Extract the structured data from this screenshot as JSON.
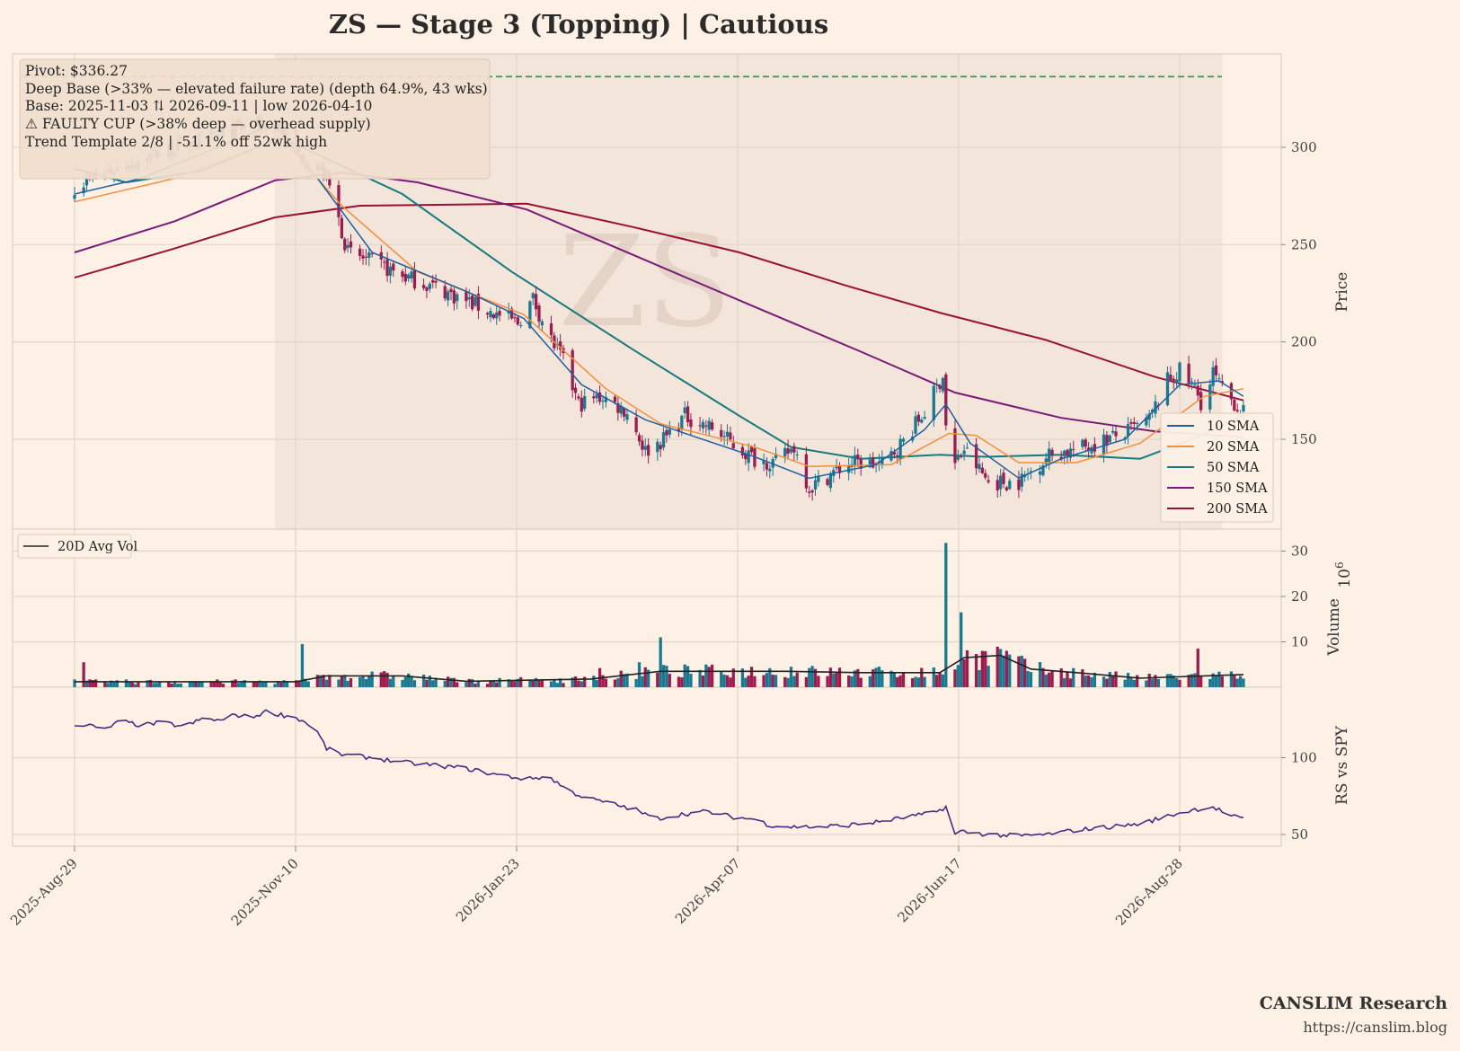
{
  "title": "ZS  —  Stage 3 (Topping)  |  Cautious",
  "watermark": "ZS",
  "annotations": [
    "Pivot: $336.27",
    "Deep Base (>33% — elevated failure rate)  (depth 64.9%, 43 wks)",
    "Base: 2025-11-03 ⇅ 2026-09-11  |  low 2026-04-10",
    "⚠ FAULTY CUP (>38% deep — overhead supply)",
    "Trend Template 2/8  |  -51.1% off 52wk high"
  ],
  "footer": {
    "brand": "CANSLIM Research",
    "url": "https://canslim.blog"
  },
  "colors": {
    "background": "#fdf1e6",
    "base_shade": "#f3e5da",
    "up_candle": "#1a7890",
    "down_candle": "#9b1d50",
    "sma10": "#1f5fa0",
    "sma20": "#f28e3c",
    "sma50": "#167a7e",
    "sma150": "#7a1a78",
    "sma200": "#9a1038",
    "pivot": "#1a9a50",
    "rs_line": "#4a2a80",
    "avg_vol": "#222222"
  },
  "chart_data": [
    {
      "type": "candlestick",
      "panel": "price",
      "ylabel": "Price",
      "yticks": [
        150,
        200,
        250,
        300
      ],
      "ylim": [
        105,
        348
      ],
      "x_dates": [
        "2025-Aug-29",
        "2025-Nov-10",
        "2026-Jan-23",
        "2026-Apr-07",
        "2026-Jun-17",
        "2026-Aug-28"
      ],
      "pivot": 336.27,
      "base_start": "2025-11-03",
      "base_end": "2026-09-11",
      "legend": [
        "10 SMA",
        "20 SMA",
        "50 SMA",
        "150 SMA",
        "200 SMA"
      ],
      "legend_position": "lower right",
      "anchors": [
        [
          "2025-08-29",
          280
        ],
        [
          "2025-09-10",
          288
        ],
        [
          "2025-09-25",
          297
        ],
        [
          "2025-10-10",
          304
        ],
        [
          "2025-10-24",
          310
        ],
        [
          "2025-11-03",
          312
        ],
        [
          "2025-11-12",
          295
        ],
        [
          "2025-11-20",
          285
        ],
        [
          "2025-11-27",
          246
        ],
        [
          "2025-12-05",
          241
        ],
        [
          "2025-12-15",
          234
        ],
        [
          "2025-12-26",
          228
        ],
        [
          "2026-01-05",
          221
        ],
        [
          "2026-01-15",
          214
        ],
        [
          "2026-01-22",
          210
        ],
        [
          "2026-01-27",
          222
        ],
        [
          "2026-02-01",
          204
        ],
        [
          "2026-02-06",
          190
        ],
        [
          "2026-02-11",
          168
        ],
        [
          "2026-02-19",
          172
        ],
        [
          "2026-02-27",
          164
        ],
        [
          "2026-03-05",
          144
        ],
        [
          "2026-03-11",
          150
        ],
        [
          "2026-03-18",
          162
        ],
        [
          "2026-03-28",
          155
        ],
        [
          "2026-04-04",
          146
        ],
        [
          "2026-04-10",
          140
        ],
        [
          "2026-04-17",
          138
        ],
        [
          "2026-04-23",
          146
        ],
        [
          "2026-04-28",
          125
        ],
        [
          "2026-05-05",
          132
        ],
        [
          "2026-05-12",
          138
        ],
        [
          "2026-05-22",
          137
        ],
        [
          "2026-05-29",
          149
        ],
        [
          "2026-06-05",
          164
        ],
        [
          "2026-06-11",
          183
        ],
        [
          "2026-06-13",
          131
        ],
        [
          "2026-06-18",
          145
        ],
        [
          "2026-06-26",
          128
        ],
        [
          "2026-07-06",
          128
        ],
        [
          "2026-07-16",
          142
        ],
        [
          "2026-07-26",
          145
        ],
        [
          "2026-08-04",
          150
        ],
        [
          "2026-08-10",
          153
        ],
        [
          "2026-08-18",
          160
        ],
        [
          "2026-08-24",
          180
        ],
        [
          "2026-08-28",
          185
        ],
        [
          "2026-09-02",
          176
        ],
        [
          "2026-09-05",
          166
        ],
        [
          "2026-09-08",
          184
        ],
        [
          "2026-09-11",
          175
        ],
        [
          "2026-09-18",
          164
        ]
      ],
      "sma10": [
        [
          "2025-08-29",
          276
        ],
        [
          "2025-09-20",
          284
        ],
        [
          "2025-10-15",
          300
        ],
        [
          "2025-11-03",
          312
        ],
        [
          "2025-11-18",
          282
        ],
        [
          "2025-12-05",
          246
        ],
        [
          "2026-01-05",
          226
        ],
        [
          "2026-01-24",
          212
        ],
        [
          "2026-02-12",
          178
        ],
        [
          "2026-03-05",
          160
        ],
        [
          "2026-03-20",
          152
        ],
        [
          "2026-04-10",
          141
        ],
        [
          "2026-04-28",
          130
        ],
        [
          "2026-05-20",
          137
        ],
        [
          "2026-06-05",
          155
        ],
        [
          "2026-06-12",
          168
        ],
        [
          "2026-06-20",
          148
        ],
        [
          "2026-07-06",
          130
        ],
        [
          "2026-07-20",
          140
        ],
        [
          "2026-08-10",
          150
        ],
        [
          "2026-08-28",
          178
        ],
        [
          "2026-09-10",
          180
        ],
        [
          "2026-09-18",
          172
        ]
      ],
      "sma20": [
        [
          "2025-08-29",
          272
        ],
        [
          "2025-10-01",
          284
        ],
        [
          "2025-11-05",
          305
        ],
        [
          "2025-11-25",
          270
        ],
        [
          "2025-12-20",
          236
        ],
        [
          "2026-01-24",
          214
        ],
        [
          "2026-02-20",
          176
        ],
        [
          "2026-03-10",
          158
        ],
        [
          "2026-04-10",
          146
        ],
        [
          "2026-04-28",
          136
        ],
        [
          "2026-05-25",
          137
        ],
        [
          "2026-06-13",
          153
        ],
        [
          "2026-06-22",
          152
        ],
        [
          "2026-07-06",
          138
        ],
        [
          "2026-07-25",
          138
        ],
        [
          "2026-08-15",
          148
        ],
        [
          "2026-09-05",
          172
        ],
        [
          "2026-09-18",
          176
        ]
      ],
      "sma50": [
        [
          "2025-08-29",
          289
        ],
        [
          "2025-09-15",
          282
        ],
        [
          "2025-10-10",
          288
        ],
        [
          "2025-11-05",
          305
        ],
        [
          "2025-12-15",
          276
        ],
        [
          "2026-01-20",
          236
        ],
        [
          "2026-03-01",
          196
        ],
        [
          "2026-04-05",
          162
        ],
        [
          "2026-04-22",
          146
        ],
        [
          "2026-05-15",
          140
        ],
        [
          "2026-06-10",
          142
        ],
        [
          "2026-06-25",
          141
        ],
        [
          "2026-07-20",
          142
        ],
        [
          "2026-08-15",
          140
        ],
        [
          "2026-09-01",
          150
        ],
        [
          "2026-09-18",
          162
        ]
      ],
      "sma150": [
        [
          "2025-08-29",
          246
        ],
        [
          "2025-10-01",
          262
        ],
        [
          "2025-11-03",
          283
        ],
        [
          "2025-11-25",
          287
        ],
        [
          "2025-12-20",
          282
        ],
        [
          "2026-01-25",
          268
        ],
        [
          "2026-03-05",
          242
        ],
        [
          "2026-04-10",
          218
        ],
        [
          "2026-05-15",
          195
        ],
        [
          "2026-06-15",
          174
        ],
        [
          "2026-07-20",
          161
        ],
        [
          "2026-08-20",
          154
        ],
        [
          "2026-09-18",
          151
        ]
      ],
      "sma200": [
        [
          "2025-08-29",
          233
        ],
        [
          "2025-10-01",
          248
        ],
        [
          "2025-11-03",
          264
        ],
        [
          "2025-12-01",
          270
        ],
        [
          "2026-01-25",
          271
        ],
        [
          "2026-03-01",
          259
        ],
        [
          "2026-04-05",
          246
        ],
        [
          "2026-05-10",
          229
        ],
        [
          "2026-06-10",
          215
        ],
        [
          "2026-07-15",
          201
        ],
        [
          "2026-08-20",
          182
        ],
        [
          "2026-09-18",
          170
        ]
      ]
    },
    {
      "type": "bar",
      "panel": "volume",
      "ylabel": "Volume",
      "scale_label": "10^6",
      "yticks": [
        10,
        20,
        30
      ],
      "ylim": [
        0,
        32
      ],
      "legend": [
        "20D Avg Vol"
      ],
      "legend_position": "upper left",
      "spikes": [
        [
          "2025-09-01",
          5.5
        ],
        [
          "2025-11-12",
          9.5
        ],
        [
          "2026-02-18",
          4.2
        ],
        [
          "2026-03-03",
          5.5
        ],
        [
          "2026-03-10",
          11
        ],
        [
          "2026-04-22",
          4.5
        ],
        [
          "2026-06-12",
          31.8
        ],
        [
          "2026-06-13",
          16
        ],
        [
          "2026-06-14",
          8.5
        ],
        [
          "2026-06-17",
          16.5
        ],
        [
          "2026-09-03",
          8.5
        ],
        [
          "2026-09-05",
          7.5
        ]
      ],
      "avg_vol": [
        [
          "2025-08-29",
          1.2
        ],
        [
          "2025-11-10",
          1.2
        ],
        [
          "2025-11-20",
          2.5
        ],
        [
          "2025-12-15",
          2.5
        ],
        [
          "2026-01-05",
          1.3
        ],
        [
          "2026-02-15",
          1.8
        ],
        [
          "2026-03-10",
          3.5
        ],
        [
          "2026-04-20",
          3.5
        ],
        [
          "2026-05-15",
          3.2
        ],
        [
          "2026-06-10",
          3.2
        ],
        [
          "2026-06-18",
          6.5
        ],
        [
          "2026-06-30",
          7
        ],
        [
          "2026-07-10",
          4
        ],
        [
          "2026-07-25",
          3.2
        ],
        [
          "2026-08-15",
          2
        ],
        [
          "2026-09-18",
          2.8
        ]
      ]
    },
    {
      "type": "line",
      "panel": "rs",
      "ylabel": "RS vs SPY",
      "yticks": [
        50,
        100
      ],
      "ylim": [
        44,
        133
      ],
      "series": [
        [
          [
            "2025-08-29",
            122
          ],
          [
            "2025-09-03",
            121
          ],
          [
            "2025-09-08",
            118
          ],
          [
            "2025-09-13",
            124
          ],
          [
            "2025-09-20",
            121
          ],
          [
            "2025-09-27",
            123
          ],
          [
            "2025-10-04",
            120
          ],
          [
            "2025-10-11",
            126
          ],
          [
            "2025-10-16",
            124
          ],
          [
            "2025-10-21",
            128
          ],
          [
            "2025-10-26",
            126
          ],
          [
            "2025-10-31",
            130
          ],
          [
            "2025-11-05",
            128
          ],
          [
            "2025-11-10",
            126
          ],
          [
            "2025-11-16",
            120
          ],
          [
            "2025-11-20",
            106
          ],
          [
            "2025-11-25",
            102
          ],
          [
            "2025-12-05",
            100
          ],
          [
            "2025-12-15",
            97
          ],
          [
            "2025-12-26",
            95
          ],
          [
            "2026-01-05",
            93
          ],
          [
            "2026-01-15",
            89
          ],
          [
            "2026-01-25",
            86
          ],
          [
            "2026-02-01",
            88
          ],
          [
            "2026-02-08",
            78
          ],
          [
            "2026-02-15",
            73
          ],
          [
            "2026-02-22",
            70
          ],
          [
            "2026-03-02",
            66
          ],
          [
            "2026-03-08",
            60
          ],
          [
            "2026-03-16",
            63
          ],
          [
            "2026-03-25",
            65
          ],
          [
            "2026-04-04",
            61
          ],
          [
            "2026-04-10",
            60
          ],
          [
            "2026-04-15",
            56
          ],
          [
            "2026-04-22",
            55
          ],
          [
            "2026-05-01",
            55
          ],
          [
            "2026-05-10",
            56
          ],
          [
            "2026-05-20",
            58
          ],
          [
            "2026-06-01",
            62
          ],
          [
            "2026-06-08",
            64
          ],
          [
            "2026-06-12",
            68
          ],
          [
            "2026-06-13",
            48
          ],
          [
            "2026-06-17",
            52
          ],
          [
            "2026-06-26",
            50
          ],
          [
            "2026-07-06",
            49
          ],
          [
            "2026-07-15",
            50
          ],
          [
            "2026-07-25",
            53
          ],
          [
            "2026-08-05",
            55
          ],
          [
            "2026-08-15",
            57
          ],
          [
            "2026-08-24",
            62
          ],
          [
            "2026-09-01",
            66
          ],
          [
            "2026-09-08",
            68
          ],
          [
            "2026-09-14",
            62
          ],
          [
            "2026-09-18",
            60
          ]
        ]
      ]
    }
  ]
}
